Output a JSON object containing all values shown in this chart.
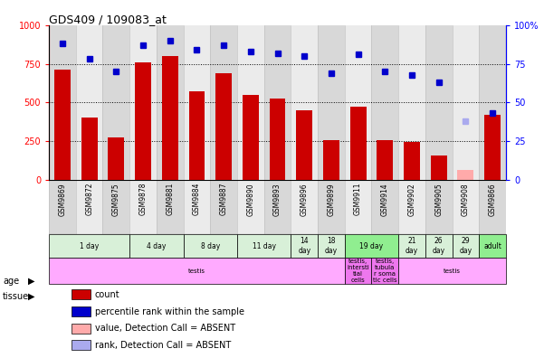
{
  "title": "GDS409 / 109083_at",
  "samples": [
    "GSM9869",
    "GSM9872",
    "GSM9875",
    "GSM9878",
    "GSM9881",
    "GSM9884",
    "GSM9887",
    "GSM9890",
    "GSM9893",
    "GSM9896",
    "GSM9899",
    "GSM9911",
    "GSM9914",
    "GSM9902",
    "GSM9905",
    "GSM9908",
    "GSM9866"
  ],
  "counts": [
    710,
    400,
    275,
    760,
    800,
    575,
    690,
    550,
    525,
    450,
    255,
    475,
    255,
    245,
    155,
    65,
    420
  ],
  "percentile_ranks": [
    88,
    78,
    70,
    87,
    90,
    84,
    87,
    83,
    82,
    80,
    69,
    81,
    70,
    68,
    63,
    38,
    43
  ],
  "absent_value_idx": 15,
  "absent_rank_idx": 15,
  "bar_color": "#cc0000",
  "absent_bar_color": "#ffaaaa",
  "dot_color": "#0000cc",
  "absent_dot_color": "#aaaaee",
  "bar_width": 0.6,
  "ylim_left": [
    0,
    1000
  ],
  "ylim_right": [
    0,
    100
  ],
  "yticks_left": [
    0,
    250,
    500,
    750,
    1000
  ],
  "yticks_right": [
    0,
    25,
    50,
    75,
    100
  ],
  "age_groups": [
    {
      "label": "1 day",
      "start": 0,
      "end": 3,
      "color": "#d8f0d8"
    },
    {
      "label": "4 day",
      "start": 3,
      "end": 5,
      "color": "#d8f0d8"
    },
    {
      "label": "8 day",
      "start": 5,
      "end": 7,
      "color": "#d8f0d8"
    },
    {
      "label": "11 day",
      "start": 7,
      "end": 9,
      "color": "#d8f0d8"
    },
    {
      "label": "14\nday",
      "start": 9,
      "end": 10,
      "color": "#d8f0d8"
    },
    {
      "label": "18\nday",
      "start": 10,
      "end": 11,
      "color": "#d8f0d8"
    },
    {
      "label": "19 day",
      "start": 11,
      "end": 13,
      "color": "#90ee90"
    },
    {
      "label": "21\nday",
      "start": 13,
      "end": 14,
      "color": "#d8f0d8"
    },
    {
      "label": "26\nday",
      "start": 14,
      "end": 15,
      "color": "#d8f0d8"
    },
    {
      "label": "29\nday",
      "start": 15,
      "end": 16,
      "color": "#d8f0d8"
    },
    {
      "label": "adult",
      "start": 16,
      "end": 17,
      "color": "#90ee90"
    }
  ],
  "tissue_groups": [
    {
      "label": "testis",
      "start": 0,
      "end": 11,
      "color": "#ffaaff"
    },
    {
      "label": "testis,\nintersti\ntial\ncells",
      "start": 11,
      "end": 12,
      "color": "#ee77ee"
    },
    {
      "label": "testis,\ntubula\nr soma\ntic cells",
      "start": 12,
      "end": 13,
      "color": "#ee77ee"
    },
    {
      "label": "testis",
      "start": 13,
      "end": 17,
      "color": "#ffaaff"
    }
  ],
  "legend_items": [
    {
      "label": "count",
      "color": "#cc0000"
    },
    {
      "label": "percentile rank within the sample",
      "color": "#0000cc"
    },
    {
      "label": "value, Detection Call = ABSENT",
      "color": "#ffaaaa"
    },
    {
      "label": "rank, Detection Call = ABSENT",
      "color": "#aaaaee"
    }
  ]
}
